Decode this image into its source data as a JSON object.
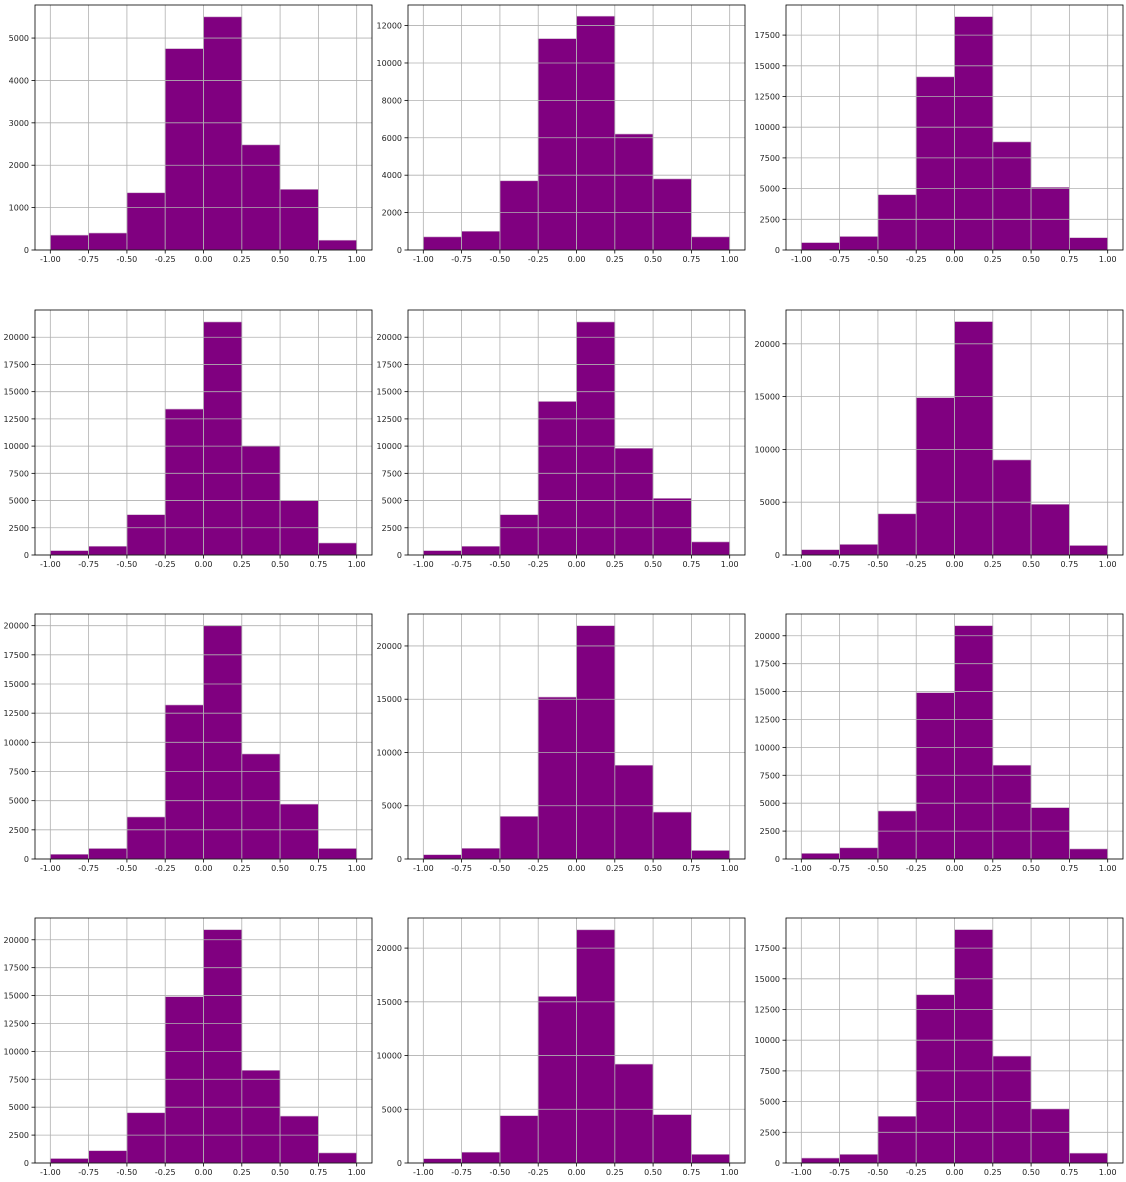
{
  "chart_data": [
    {
      "type": "histogram",
      "color": "#800080",
      "grid": true,
      "bins": [
        -1,
        -0.75,
        -0.5,
        -0.25,
        0,
        0.25,
        0.5,
        0.75,
        1
      ],
      "values": [
        350,
        400,
        1350,
        4750,
        5500,
        2480,
        1430,
        230
      ],
      "xlim": [
        -1.1,
        1.1
      ],
      "ylim": [
        0,
        5780
      ],
      "xticks": [
        {
          "value": -1,
          "label": "-1.00"
        },
        {
          "value": -0.75,
          "label": "-0.75"
        },
        {
          "value": -0.5,
          "label": "-0.50"
        },
        {
          "value": -0.25,
          "label": "-0.25"
        },
        {
          "value": 0,
          "label": "0.00"
        },
        {
          "value": 0.25,
          "label": "0.25"
        },
        {
          "value": 0.5,
          "label": "0.50"
        },
        {
          "value": 0.75,
          "label": "0.75"
        },
        {
          "value": 1,
          "label": "1.00"
        }
      ],
      "yticks": [
        0,
        1000,
        2000,
        3000,
        4000,
        5000
      ]
    },
    {
      "type": "histogram",
      "color": "#800080",
      "grid": true,
      "bins": [
        -1,
        -0.75,
        -0.5,
        -0.25,
        0,
        0.25,
        0.5,
        0.75,
        1
      ],
      "values": [
        700,
        1000,
        3700,
        11300,
        12500,
        6200,
        3800,
        700
      ],
      "xlim": [
        -1.1,
        1.1
      ],
      "ylim": [
        0,
        13100
      ],
      "xticks": [
        {
          "value": -1,
          "label": "-1.00"
        },
        {
          "value": -0.75,
          "label": "-0.75"
        },
        {
          "value": -0.5,
          "label": "-0.50"
        },
        {
          "value": -0.25,
          "label": "-0.25"
        },
        {
          "value": 0,
          "label": "0.00"
        },
        {
          "value": 0.25,
          "label": "0.25"
        },
        {
          "value": 0.5,
          "label": "0.50"
        },
        {
          "value": 0.75,
          "label": "0.75"
        },
        {
          "value": 1,
          "label": "1.00"
        }
      ],
      "yticks": [
        0,
        2000,
        4000,
        6000,
        8000,
        10000,
        12000
      ]
    },
    {
      "type": "histogram",
      "color": "#800080",
      "grid": true,
      "bins": [
        -1,
        -0.75,
        -0.5,
        -0.25,
        0,
        0.25,
        0.5,
        0.75,
        1
      ],
      "values": [
        600,
        1100,
        4500,
        14100,
        19000,
        8800,
        5100,
        1000
      ],
      "xlim": [
        -1.1,
        1.1
      ],
      "ylim": [
        0,
        19950
      ],
      "xticks": [
        {
          "value": -1,
          "label": "-1.00"
        },
        {
          "value": -0.75,
          "label": "-0.75"
        },
        {
          "value": -0.5,
          "label": "-0.50"
        },
        {
          "value": -0.25,
          "label": "-0.25"
        },
        {
          "value": 0,
          "label": "0.00"
        },
        {
          "value": 0.25,
          "label": "0.25"
        },
        {
          "value": 0.5,
          "label": "0.50"
        },
        {
          "value": 0.75,
          "label": "0.75"
        },
        {
          "value": 1,
          "label": "1.00"
        }
      ],
      "yticks": [
        0,
        2500,
        5000,
        7500,
        10000,
        12500,
        15000,
        17500
      ]
    },
    {
      "type": "histogram",
      "color": "#800080",
      "grid": true,
      "bins": [
        -1,
        -0.75,
        -0.5,
        -0.25,
        0,
        0.25,
        0.5,
        0.75,
        1
      ],
      "values": [
        400,
        800,
        3700,
        13400,
        21400,
        10000,
        5000,
        1100
      ],
      "xlim": [
        -1.1,
        1.1
      ],
      "ylim": [
        0,
        22500
      ],
      "xticks": [
        {
          "value": -1,
          "label": "-1.00"
        },
        {
          "value": -0.75,
          "label": "-0.75"
        },
        {
          "value": -0.5,
          "label": "-0.50"
        },
        {
          "value": -0.25,
          "label": "-0.25"
        },
        {
          "value": 0,
          "label": "0.00"
        },
        {
          "value": 0.25,
          "label": "0.25"
        },
        {
          "value": 0.5,
          "label": "0.50"
        },
        {
          "value": 0.75,
          "label": "0.75"
        },
        {
          "value": 1,
          "label": "1.00"
        }
      ],
      "yticks": [
        0,
        2500,
        5000,
        7500,
        10000,
        12500,
        15000,
        17500,
        20000
      ]
    },
    {
      "type": "histogram",
      "color": "#800080",
      "grid": true,
      "bins": [
        -1,
        -0.75,
        -0.5,
        -0.25,
        0,
        0.25,
        0.5,
        0.75,
        1
      ],
      "values": [
        400,
        800,
        3700,
        14100,
        21400,
        9800,
        5200,
        1200
      ],
      "xlim": [
        -1.1,
        1.1
      ],
      "ylim": [
        0,
        22500
      ],
      "xticks": [
        {
          "value": -1,
          "label": "-1.00"
        },
        {
          "value": -0.75,
          "label": "-0.75"
        },
        {
          "value": -0.5,
          "label": "-0.50"
        },
        {
          "value": -0.25,
          "label": "-0.25"
        },
        {
          "value": 0,
          "label": "0.00"
        },
        {
          "value": 0.25,
          "label": "0.25"
        },
        {
          "value": 0.5,
          "label": "0.50"
        },
        {
          "value": 0.75,
          "label": "0.75"
        },
        {
          "value": 1,
          "label": "1.00"
        }
      ],
      "yticks": [
        0,
        2500,
        5000,
        7500,
        10000,
        12500,
        15000,
        17500,
        20000
      ]
    },
    {
      "type": "histogram",
      "color": "#800080",
      "grid": true,
      "bins": [
        -1,
        -0.75,
        -0.5,
        -0.25,
        0,
        0.25,
        0.5,
        0.75,
        1
      ],
      "values": [
        500,
        1000,
        3900,
        14900,
        22100,
        9000,
        4800,
        900
      ],
      "xlim": [
        -1.1,
        1.1
      ],
      "ylim": [
        0,
        23200
      ],
      "xticks": [
        {
          "value": -1,
          "label": "-1.00"
        },
        {
          "value": -0.75,
          "label": "-0.75"
        },
        {
          "value": -0.5,
          "label": "-0.50"
        },
        {
          "value": -0.25,
          "label": "-0.25"
        },
        {
          "value": 0,
          "label": "0.00"
        },
        {
          "value": 0.25,
          "label": "0.25"
        },
        {
          "value": 0.5,
          "label": "0.50"
        },
        {
          "value": 0.75,
          "label": "0.75"
        },
        {
          "value": 1,
          "label": "1.00"
        }
      ],
      "yticks": [
        0,
        5000,
        10000,
        15000,
        20000
      ]
    },
    {
      "type": "histogram",
      "color": "#800080",
      "grid": true,
      "bins": [
        -1,
        -0.75,
        -0.5,
        -0.25,
        0,
        0.25,
        0.5,
        0.75,
        1
      ],
      "values": [
        400,
        900,
        3600,
        13200,
        20000,
        9000,
        4700,
        900
      ],
      "xlim": [
        -1.1,
        1.1
      ],
      "ylim": [
        0,
        21000
      ],
      "xticks": [
        {
          "value": -1,
          "label": "-1.00"
        },
        {
          "value": -0.75,
          "label": "-0.75"
        },
        {
          "value": -0.5,
          "label": "-0.50"
        },
        {
          "value": -0.25,
          "label": "-0.25"
        },
        {
          "value": 0,
          "label": "0.00"
        },
        {
          "value": 0.25,
          "label": "0.25"
        },
        {
          "value": 0.5,
          "label": "0.50"
        },
        {
          "value": 0.75,
          "label": "0.75"
        },
        {
          "value": 1,
          "label": "1.00"
        }
      ],
      "yticks": [
        0,
        2500,
        5000,
        7500,
        10000,
        12500,
        15000,
        17500,
        20000
      ]
    },
    {
      "type": "histogram",
      "color": "#800080",
      "grid": true,
      "bins": [
        -1,
        -0.75,
        -0.5,
        -0.25,
        0,
        0.25,
        0.5,
        0.75,
        1
      ],
      "values": [
        400,
        1000,
        4000,
        15200,
        21900,
        8800,
        4400,
        800
      ],
      "xlim": [
        -1.1,
        1.1
      ],
      "ylim": [
        0,
        23000
      ],
      "xticks": [
        {
          "value": -1,
          "label": "-1.00"
        },
        {
          "value": -0.75,
          "label": "-0.75"
        },
        {
          "value": -0.5,
          "label": "-0.50"
        },
        {
          "value": -0.25,
          "label": "-0.25"
        },
        {
          "value": 0,
          "label": "0.00"
        },
        {
          "value": 0.25,
          "label": "0.25"
        },
        {
          "value": 0.5,
          "label": "0.50"
        },
        {
          "value": 0.75,
          "label": "0.75"
        },
        {
          "value": 1,
          "label": "1.00"
        }
      ],
      "yticks": [
        0,
        5000,
        10000,
        15000,
        20000
      ]
    },
    {
      "type": "histogram",
      "color": "#800080",
      "grid": true,
      "bins": [
        -1,
        -0.75,
        -0.5,
        -0.25,
        0,
        0.25,
        0.5,
        0.75,
        1
      ],
      "values": [
        500,
        1000,
        4300,
        14900,
        20900,
        8400,
        4600,
        900
      ],
      "xlim": [
        -1.1,
        1.1
      ],
      "ylim": [
        0,
        21950
      ],
      "xticks": [
        {
          "value": -1,
          "label": "-1.00"
        },
        {
          "value": -0.75,
          "label": "-0.75"
        },
        {
          "value": -0.5,
          "label": "-0.50"
        },
        {
          "value": -0.25,
          "label": "-0.25"
        },
        {
          "value": 0,
          "label": "0.00"
        },
        {
          "value": 0.25,
          "label": "0.25"
        },
        {
          "value": 0.5,
          "label": "0.50"
        },
        {
          "value": 0.75,
          "label": "0.75"
        },
        {
          "value": 1,
          "label": "1.00"
        }
      ],
      "yticks": [
        0,
        2500,
        5000,
        7500,
        10000,
        12500,
        15000,
        17500,
        20000
      ]
    },
    {
      "type": "histogram",
      "color": "#800080",
      "grid": true,
      "bins": [
        -1,
        -0.75,
        -0.5,
        -0.25,
        0,
        0.25,
        0.5,
        0.75,
        1
      ],
      "values": [
        400,
        1100,
        4500,
        14900,
        20900,
        8300,
        4200,
        900
      ],
      "xlim": [
        -1.1,
        1.1
      ],
      "ylim": [
        0,
        21950
      ],
      "xticks": [
        {
          "value": -1,
          "label": "-1.00"
        },
        {
          "value": -0.75,
          "label": "-0.75"
        },
        {
          "value": -0.5,
          "label": "-0.50"
        },
        {
          "value": -0.25,
          "label": "-0.25"
        },
        {
          "value": 0,
          "label": "0.00"
        },
        {
          "value": 0.25,
          "label": "0.25"
        },
        {
          "value": 0.5,
          "label": "0.50"
        },
        {
          "value": 0.75,
          "label": "0.75"
        },
        {
          "value": 1,
          "label": "1.00"
        }
      ],
      "yticks": [
        0,
        2500,
        5000,
        7500,
        10000,
        12500,
        15000,
        17500,
        20000
      ]
    },
    {
      "type": "histogram",
      "color": "#800080",
      "grid": true,
      "bins": [
        -1,
        -0.75,
        -0.5,
        -0.25,
        0,
        0.25,
        0.5,
        0.75,
        1
      ],
      "values": [
        400,
        1000,
        4400,
        15500,
        21700,
        9200,
        4500,
        800
      ],
      "xlim": [
        -1.1,
        1.1
      ],
      "ylim": [
        0,
        22800
      ],
      "xticks": [
        {
          "value": -1,
          "label": "-1.00"
        },
        {
          "value": -0.75,
          "label": "-0.75"
        },
        {
          "value": -0.5,
          "label": "-0.50"
        },
        {
          "value": -0.25,
          "label": "-0.25"
        },
        {
          "value": 0,
          "label": "0.00"
        },
        {
          "value": 0.25,
          "label": "0.25"
        },
        {
          "value": 0.5,
          "label": "0.50"
        },
        {
          "value": 0.75,
          "label": "0.75"
        },
        {
          "value": 1,
          "label": "1.00"
        }
      ],
      "yticks": [
        0,
        5000,
        10000,
        15000,
        20000
      ]
    },
    {
      "type": "histogram",
      "color": "#800080",
      "grid": true,
      "bins": [
        -1,
        -0.75,
        -0.5,
        -0.25,
        0,
        0.25,
        0.5,
        0.75,
        1
      ],
      "values": [
        400,
        700,
        3800,
        13700,
        19000,
        8700,
        4400,
        800
      ],
      "xlim": [
        -1.1,
        1.1
      ],
      "ylim": [
        0,
        19950
      ],
      "xticks": [
        {
          "value": -1,
          "label": "-1.00"
        },
        {
          "value": -0.75,
          "label": "-0.75"
        },
        {
          "value": -0.5,
          "label": "-0.50"
        },
        {
          "value": -0.25,
          "label": "-0.25"
        },
        {
          "value": 0,
          "label": "0.00"
        },
        {
          "value": 0.25,
          "label": "0.25"
        },
        {
          "value": 0.5,
          "label": "0.50"
        },
        {
          "value": 0.75,
          "label": "0.75"
        },
        {
          "value": 1,
          "label": "1.00"
        }
      ],
      "yticks": [
        0,
        2500,
        5000,
        7500,
        10000,
        12500,
        15000,
        17500
      ]
    }
  ]
}
